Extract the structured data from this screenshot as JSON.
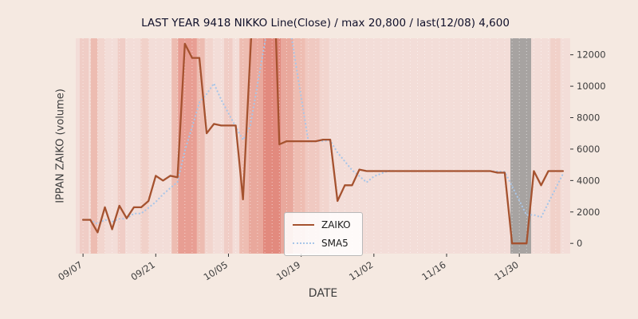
{
  "title": "LAST YEAR 9418 NIKKO Line(Close) / max 20,800 / last(12/08) 4,600",
  "legend": {
    "entries": [
      {
        "label": "ZAIKO"
      },
      {
        "label": "SMA5"
      }
    ]
  },
  "chart_data": {
    "type": "line",
    "title": "LAST YEAR 9418 NIKKO Line(Close) / max 20,800 / last(12/08) 4,600",
    "xlabel": "DATE",
    "ylabel": "IPPAN ZAIKO (volume)",
    "x_tick_labels": [
      "09/07",
      "09/21",
      "10/05",
      "10/19",
      "11/02",
      "11/16",
      "11/30"
    ],
    "x_tick_indices": [
      0,
      10,
      20,
      30,
      40,
      50,
      60
    ],
    "yticks": [
      0,
      2000,
      4000,
      6000,
      8000,
      10000,
      12000
    ],
    "ylim": [
      -650,
      13050
    ],
    "grid": "vertical-daily-white-dotted",
    "legend_position": "lower-center",
    "annotations": {
      "max_value": 20800,
      "last_date": "12/08",
      "last_value": 4600
    },
    "series": [
      {
        "name": "ZAIKO",
        "style": "solid",
        "color": "#a5522f",
        "values": [
          1500,
          1500,
          700,
          2300,
          900,
          2400,
          1600,
          2300,
          2300,
          2700,
          4300,
          4000,
          4300,
          4200,
          12700,
          11800,
          11800,
          7000,
          7600,
          7500,
          7500,
          7500,
          2800,
          12000,
          20800,
          20800,
          20800,
          6300,
          6500,
          6500,
          6500,
          6500,
          6500,
          6600,
          6600,
          2700,
          3700,
          3700,
          4700,
          4600,
          4600,
          4600,
          4600,
          4600,
          4600,
          4600,
          4600,
          4600,
          4600,
          4600,
          4600,
          4600,
          4600,
          4600,
          4600,
          4600,
          4600,
          4500,
          4500,
          0,
          0,
          0,
          4600,
          3700,
          4600,
          4600,
          4600
        ]
      },
      {
        "name": "SMA5",
        "style": "dotted",
        "color": "#a9c6e8",
        "derived_from": "5-point moving average of ZAIKO"
      }
    ],
    "background": {
      "figure": "#f5e9e1",
      "plot": "#f3ddd8",
      "gridline_color": "#ffffff",
      "tick_color": "#333333",
      "tick_label_color": "#3d3d3d",
      "bands": [
        {
          "x0": 0.008,
          "x1": 0.026,
          "color": "#f0cdc6"
        },
        {
          "x0": 0.03,
          "x1": 0.044,
          "color": "#edbcb1"
        },
        {
          "x0": 0.044,
          "x1": 0.059,
          "color": "#f2d5ce"
        },
        {
          "x0": 0.085,
          "x1": 0.1,
          "color": "#f0cdc6"
        },
        {
          "x0": 0.131,
          "x1": 0.148,
          "color": "#f1d1c9"
        },
        {
          "x0": 0.194,
          "x1": 0.207,
          "color": "#edbcb1"
        },
        {
          "x0": 0.207,
          "x1": 0.245,
          "color": "#e89e93"
        },
        {
          "x0": 0.245,
          "x1": 0.261,
          "color": "#edbcb1"
        },
        {
          "x0": 0.261,
          "x1": 0.277,
          "color": "#f2d5ce"
        },
        {
          "x0": 0.3,
          "x1": 0.317,
          "color": "#f0cdc6"
        },
        {
          "x0": 0.331,
          "x1": 0.35,
          "color": "#eebdb2"
        },
        {
          "x0": 0.35,
          "x1": 0.379,
          "color": "#e9a89c"
        },
        {
          "x0": 0.379,
          "x1": 0.415,
          "color": "#e28a7e"
        },
        {
          "x0": 0.415,
          "x1": 0.44,
          "color": "#e9a89c"
        },
        {
          "x0": 0.44,
          "x1": 0.464,
          "color": "#eebdb2"
        },
        {
          "x0": 0.464,
          "x1": 0.493,
          "color": "#f0c9c1"
        },
        {
          "x0": 0.493,
          "x1": 0.512,
          "color": "#f2d5ce"
        },
        {
          "x0": 0.879,
          "x1": 0.921,
          "color": "#a7a3a1"
        },
        {
          "x0": 0.96,
          "x1": 0.98,
          "color": "#f1d1c9"
        }
      ]
    }
  }
}
